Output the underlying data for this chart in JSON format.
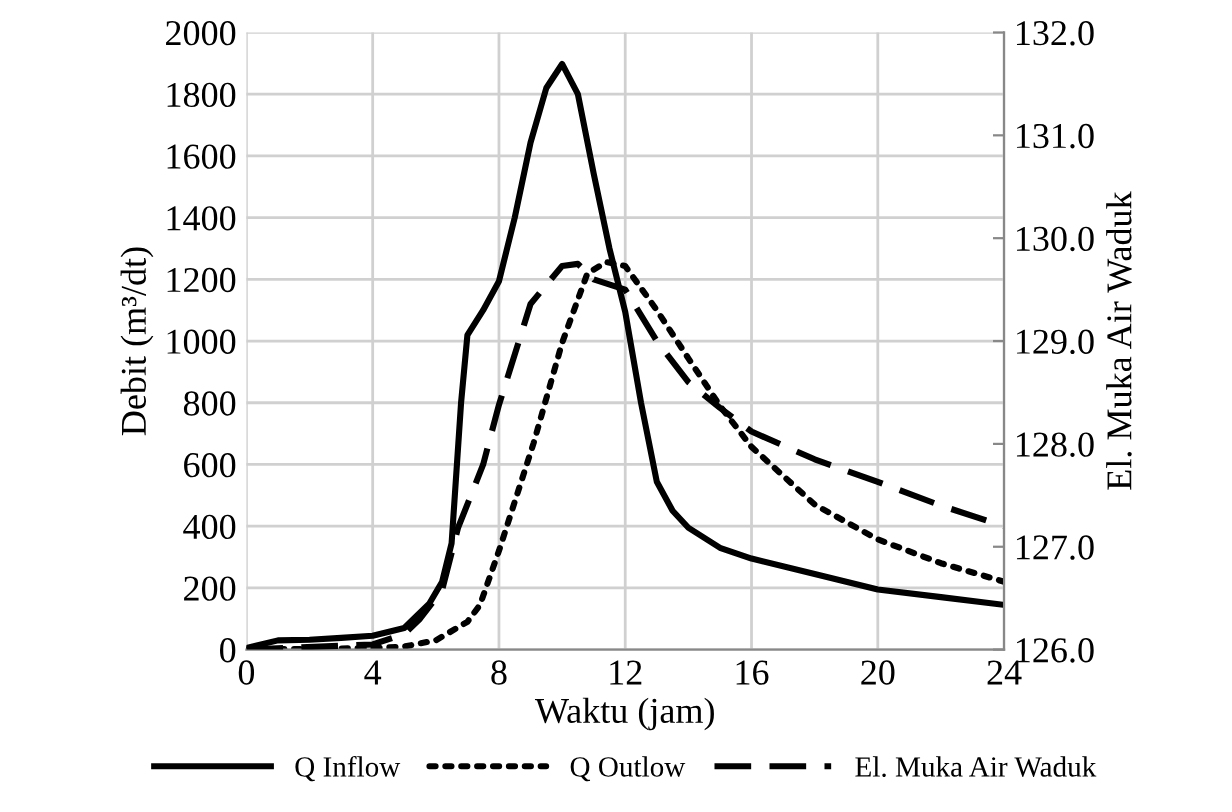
{
  "chart_data": {
    "type": "line",
    "xlabel": "Waktu (jam)",
    "ylabel": "Debit (m³/dt)",
    "y2label": "El. Muka Air Waduk",
    "xlim": [
      0,
      24
    ],
    "xticks": [
      0,
      4,
      8,
      12,
      16,
      20,
      24
    ],
    "ylim": [
      0,
      2000
    ],
    "yticks": [
      0,
      200,
      400,
      600,
      800,
      1000,
      1200,
      1400,
      1600,
      1800,
      2000
    ],
    "y2lim": [
      126,
      132
    ],
    "y2ticks": [
      {
        "value": 126,
        "label": "126.0"
      },
      {
        "value": 127,
        "label": "127.0"
      },
      {
        "value": 128,
        "label": "128.0"
      },
      {
        "value": 129,
        "label": "129.0"
      },
      {
        "value": 130,
        "label": "130.0"
      },
      {
        "value": 131,
        "label": "131.0"
      },
      {
        "value": 132,
        "label": "132.0"
      }
    ],
    "grid": true,
    "legend": "bottom",
    "marker": "none",
    "series": [
      {
        "name": "Q Inflow",
        "color": "#000000",
        "line_style": "solid",
        "x": [
          0,
          1,
          2,
          3,
          4,
          5,
          5.8,
          6.2,
          6.5,
          6.8,
          7,
          7.5,
          8,
          8.5,
          9,
          9.5,
          10,
          10.5,
          11,
          11.5,
          12,
          12.5,
          13,
          13.5,
          14,
          15,
          16,
          18,
          20,
          22,
          24
        ],
        "values": [
          5,
          30,
          32,
          38,
          45,
          70,
          150,
          220,
          345,
          800,
          1019,
          1100,
          1194,
          1400,
          1643,
          1820,
          1898,
          1800,
          1543,
          1300,
          1094,
          800,
          544,
          450,
          395,
          330,
          295,
          245,
          195,
          170,
          145
        ]
      },
      {
        "name": "Q Outlow",
        "color": "#000000",
        "line_style": "dotted",
        "x": [
          0,
          4,
          5,
          6,
          7,
          7.4,
          8,
          9.1,
          10,
          10.8,
          11.4,
          12,
          13,
          14,
          15,
          16,
          18,
          20,
          22,
          24
        ],
        "values": [
          0,
          5,
          10,
          30,
          90,
          145,
          320,
          670,
          994,
          1219,
          1256,
          1243,
          1100,
          944,
          790,
          657,
          470,
          357,
          280,
          220
        ]
      },
      {
        "name": "El. Muka Air Waduk",
        "color": "#000000",
        "line_style": "dashed",
        "axis": "y2",
        "x": [
          0,
          4,
          5,
          5.5,
          6,
          6.2,
          6.7,
          7.5,
          8,
          9,
          10,
          10.5,
          11,
          12,
          13,
          14,
          15,
          16,
          18,
          20,
          22,
          24
        ],
        "values": [
          126.0,
          126.05,
          126.15,
          126.3,
          126.5,
          126.58,
          127.18,
          127.8,
          128.38,
          129.36,
          129.73,
          129.75,
          129.6,
          129.5,
          129.0,
          128.6,
          128.35,
          128.12,
          127.85,
          127.63,
          127.4,
          127.2
        ]
      }
    ]
  }
}
